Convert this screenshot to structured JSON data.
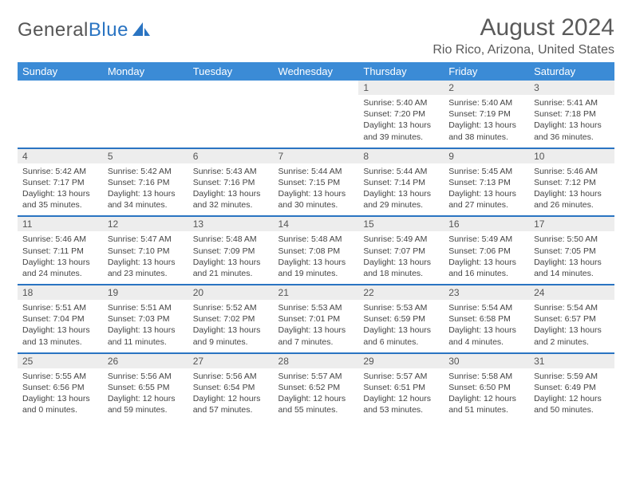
{
  "brand": {
    "part1": "General",
    "part2": "Blue"
  },
  "title": "August 2024",
  "location": "Rio Rico, Arizona, United States",
  "colors": {
    "header_bg": "#3b8bd6",
    "row_divider": "#2a74c2",
    "daynum_bg": "#ededed",
    "text": "#444444",
    "title_text": "#5a5a5a"
  },
  "weekdays": [
    "Sunday",
    "Monday",
    "Tuesday",
    "Wednesday",
    "Thursday",
    "Friday",
    "Saturday"
  ],
  "first_weekday_index": 4,
  "days": [
    {
      "n": 1,
      "sunrise": "5:40 AM",
      "sunset": "7:20 PM",
      "daylight": "13 hours and 39 minutes."
    },
    {
      "n": 2,
      "sunrise": "5:40 AM",
      "sunset": "7:19 PM",
      "daylight": "13 hours and 38 minutes."
    },
    {
      "n": 3,
      "sunrise": "5:41 AM",
      "sunset": "7:18 PM",
      "daylight": "13 hours and 36 minutes."
    },
    {
      "n": 4,
      "sunrise": "5:42 AM",
      "sunset": "7:17 PM",
      "daylight": "13 hours and 35 minutes."
    },
    {
      "n": 5,
      "sunrise": "5:42 AM",
      "sunset": "7:16 PM",
      "daylight": "13 hours and 34 minutes."
    },
    {
      "n": 6,
      "sunrise": "5:43 AM",
      "sunset": "7:16 PM",
      "daylight": "13 hours and 32 minutes."
    },
    {
      "n": 7,
      "sunrise": "5:44 AM",
      "sunset": "7:15 PM",
      "daylight": "13 hours and 30 minutes."
    },
    {
      "n": 8,
      "sunrise": "5:44 AM",
      "sunset": "7:14 PM",
      "daylight": "13 hours and 29 minutes."
    },
    {
      "n": 9,
      "sunrise": "5:45 AM",
      "sunset": "7:13 PM",
      "daylight": "13 hours and 27 minutes."
    },
    {
      "n": 10,
      "sunrise": "5:46 AM",
      "sunset": "7:12 PM",
      "daylight": "13 hours and 26 minutes."
    },
    {
      "n": 11,
      "sunrise": "5:46 AM",
      "sunset": "7:11 PM",
      "daylight": "13 hours and 24 minutes."
    },
    {
      "n": 12,
      "sunrise": "5:47 AM",
      "sunset": "7:10 PM",
      "daylight": "13 hours and 23 minutes."
    },
    {
      "n": 13,
      "sunrise": "5:48 AM",
      "sunset": "7:09 PM",
      "daylight": "13 hours and 21 minutes."
    },
    {
      "n": 14,
      "sunrise": "5:48 AM",
      "sunset": "7:08 PM",
      "daylight": "13 hours and 19 minutes."
    },
    {
      "n": 15,
      "sunrise": "5:49 AM",
      "sunset": "7:07 PM",
      "daylight": "13 hours and 18 minutes."
    },
    {
      "n": 16,
      "sunrise": "5:49 AM",
      "sunset": "7:06 PM",
      "daylight": "13 hours and 16 minutes."
    },
    {
      "n": 17,
      "sunrise": "5:50 AM",
      "sunset": "7:05 PM",
      "daylight": "13 hours and 14 minutes."
    },
    {
      "n": 18,
      "sunrise": "5:51 AM",
      "sunset": "7:04 PM",
      "daylight": "13 hours and 13 minutes."
    },
    {
      "n": 19,
      "sunrise": "5:51 AM",
      "sunset": "7:03 PM",
      "daylight": "13 hours and 11 minutes."
    },
    {
      "n": 20,
      "sunrise": "5:52 AM",
      "sunset": "7:02 PM",
      "daylight": "13 hours and 9 minutes."
    },
    {
      "n": 21,
      "sunrise": "5:53 AM",
      "sunset": "7:01 PM",
      "daylight": "13 hours and 7 minutes."
    },
    {
      "n": 22,
      "sunrise": "5:53 AM",
      "sunset": "6:59 PM",
      "daylight": "13 hours and 6 minutes."
    },
    {
      "n": 23,
      "sunrise": "5:54 AM",
      "sunset": "6:58 PM",
      "daylight": "13 hours and 4 minutes."
    },
    {
      "n": 24,
      "sunrise": "5:54 AM",
      "sunset": "6:57 PM",
      "daylight": "13 hours and 2 minutes."
    },
    {
      "n": 25,
      "sunrise": "5:55 AM",
      "sunset": "6:56 PM",
      "daylight": "13 hours and 0 minutes."
    },
    {
      "n": 26,
      "sunrise": "5:56 AM",
      "sunset": "6:55 PM",
      "daylight": "12 hours and 59 minutes."
    },
    {
      "n": 27,
      "sunrise": "5:56 AM",
      "sunset": "6:54 PM",
      "daylight": "12 hours and 57 minutes."
    },
    {
      "n": 28,
      "sunrise": "5:57 AM",
      "sunset": "6:52 PM",
      "daylight": "12 hours and 55 minutes."
    },
    {
      "n": 29,
      "sunrise": "5:57 AM",
      "sunset": "6:51 PM",
      "daylight": "12 hours and 53 minutes."
    },
    {
      "n": 30,
      "sunrise": "5:58 AM",
      "sunset": "6:50 PM",
      "daylight": "12 hours and 51 minutes."
    },
    {
      "n": 31,
      "sunrise": "5:59 AM",
      "sunset": "6:49 PM",
      "daylight": "12 hours and 50 minutes."
    }
  ],
  "labels": {
    "sunrise": "Sunrise:",
    "sunset": "Sunset:",
    "daylight": "Daylight:"
  }
}
